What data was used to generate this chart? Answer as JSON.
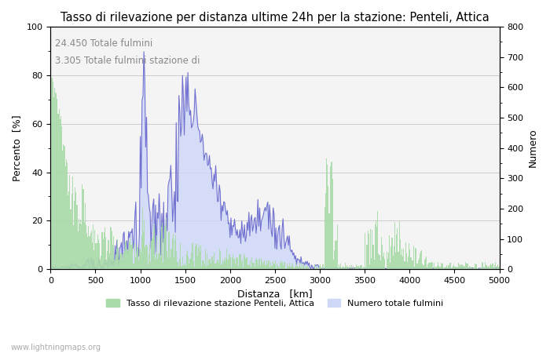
{
  "title": "Tasso di rilevazione per distanza ultime 24h per la stazione: Penteli, Attica",
  "xlabel": "Distanza   [km]",
  "ylabel_left": "Percento  [%]",
  "ylabel_right": "Numero",
  "annotation1": "24.450 Totale fulmini",
  "annotation2": "3.305 Totale fulmini stazione di",
  "xlim": [
    0,
    5000
  ],
  "ylim_left": [
    0,
    100
  ],
  "ylim_right": [
    0,
    800
  ],
  "legend_label_green": "Tasso di rilevazione stazione Penteli, Attica",
  "legend_label_blue": "Numero totale fulmini",
  "watermark": "www.lightningmaps.org",
  "bar_color": "#a8dba8",
  "fill_color": "#d0d8f8",
  "line_color": "#7070d0",
  "background_color": "#f4f4f4",
  "grid_color": "#cccccc",
  "title_fontsize": 10.5,
  "label_fontsize": 9,
  "tick_fontsize": 8,
  "annotation_fontsize": 8.5,
  "xticks": [
    0,
    500,
    1000,
    1500,
    2000,
    2500,
    3000,
    3500,
    4000,
    4500,
    5000
  ],
  "yticks_left": [
    0,
    20,
    40,
    60,
    80,
    100
  ],
  "yticks_right": [
    0,
    100,
    200,
    300,
    400,
    500,
    600,
    700,
    800
  ]
}
